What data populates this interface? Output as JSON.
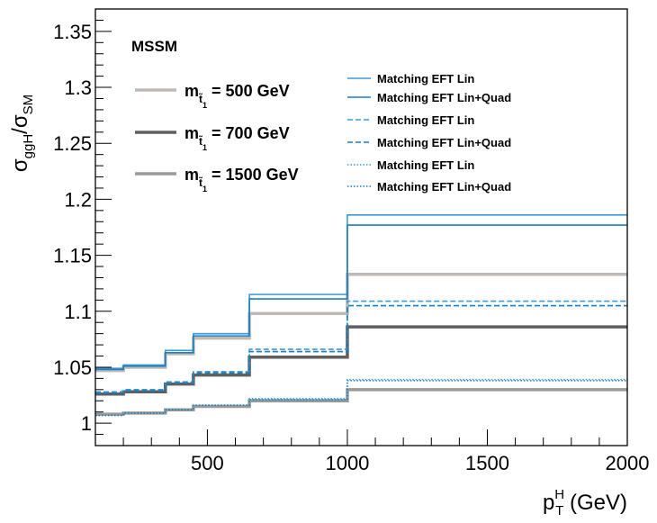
{
  "chart_data": {
    "type": "line",
    "step": true,
    "xlim": [
      100,
      2000
    ],
    "ylim": [
      0.98,
      1.37
    ],
    "x_ticks": [
      500,
      1000,
      1500,
      2000
    ],
    "x_tick_labels": [
      "500",
      "1000",
      "1500",
      "2000"
    ],
    "y_ticks": [
      1.0,
      1.05,
      1.1,
      1.15,
      1.2,
      1.25,
      1.3,
      1.35
    ],
    "y_tick_labels": [
      "1",
      "1.05",
      "1.1",
      "1.15",
      "1.2",
      "1.25",
      "1.3",
      "1.35"
    ],
    "xlabel": {
      "main": "p",
      "sup": "H",
      "sub": "T",
      "unit": " (GeV)"
    },
    "ylabel": {
      "num": "σ",
      "num_sub": "ggH",
      "slash": "/",
      "den": "σ",
      "den_sub": "SM"
    },
    "annotation": "MSSM",
    "bin_edges": [
      100,
      200,
      350,
      450,
      650,
      1000,
      2000
    ],
    "mass_legend": [
      {
        "prefix": "m",
        "sub": "t̃",
        "subsub": "1",
        "text": "=  500 GeV",
        "color": "#c0b8b4"
      },
      {
        "prefix": "m",
        "sub": "t̃",
        "subsub": "1",
        "text": "=  700 GeV",
        "color": "#5f5f5f"
      },
      {
        "prefix": "m",
        "sub": "t̃",
        "subsub": "1",
        "text": "= 1500 GeV",
        "color": "#9a9a9a"
      }
    ],
    "line_legend": [
      {
        "label": "Matching EFT Lin",
        "style": "solid",
        "color": "#3a9ad9"
      },
      {
        "label": "Matching EFT Lin+Quad",
        "style": "solid",
        "color": "#1a7fc0"
      },
      {
        "label": "Matching EFT Lin",
        "style": "dashed",
        "color": "#3a9ad9"
      },
      {
        "label": "Matching EFT Lin+Quad",
        "style": "dashed",
        "color": "#1a7fc0"
      },
      {
        "label": "Matching EFT Lin",
        "style": "dotted",
        "color": "#3a9ad9"
      },
      {
        "label": "Matching EFT Lin+Quad",
        "style": "dotted",
        "color": "#1a7fc0"
      }
    ],
    "series": [
      {
        "group": "500 GeV",
        "role": "main",
        "style": "solid",
        "width": 3.5,
        "color": "#c0b8b4",
        "values": [
          1.047,
          1.05,
          1.062,
          1.076,
          1.098,
          1.133
        ]
      },
      {
        "group": "500 GeV",
        "role": "EFT Lin",
        "style": "solid",
        "width": 1.6,
        "color": "#3a9ad9",
        "values": [
          1.049,
          1.052,
          1.065,
          1.08,
          1.115,
          1.186
        ]
      },
      {
        "group": "500 GeV",
        "role": "EFT Lin+Quad",
        "style": "solid",
        "width": 1.6,
        "color": "#1a7fc0",
        "values": [
          1.048,
          1.051,
          1.063,
          1.078,
          1.111,
          1.177
        ]
      },
      {
        "group": "700 GeV",
        "role": "main",
        "style": "solid",
        "width": 3.5,
        "color": "#5f5f5f",
        "values": [
          1.026,
          1.028,
          1.035,
          1.043,
          1.059,
          1.086
        ]
      },
      {
        "group": "700 GeV",
        "role": "EFT Lin",
        "style": "dashed",
        "width": 1.6,
        "color": "#3a9ad9",
        "values": [
          1.028,
          1.03,
          1.037,
          1.046,
          1.066,
          1.109
        ]
      },
      {
        "group": "700 GeV",
        "role": "EFT Lin+Quad",
        "style": "dashed",
        "width": 1.6,
        "color": "#1a7fc0",
        "values": [
          1.027,
          1.029,
          1.036,
          1.045,
          1.064,
          1.105
        ]
      },
      {
        "group": "1500 GeV",
        "role": "main",
        "style": "solid",
        "width": 3.5,
        "color": "#9a9a9a",
        "values": [
          1.008,
          1.009,
          1.012,
          1.015,
          1.02,
          1.03
        ]
      },
      {
        "group": "1500 GeV",
        "role": "EFT Lin",
        "style": "dotted",
        "width": 1.6,
        "color": "#3a9ad9",
        "values": [
          1.007,
          1.009,
          1.012,
          1.016,
          1.022,
          1.039
        ]
      },
      {
        "group": "1500 GeV",
        "role": "EFT Lin+Quad",
        "style": "dotted",
        "width": 1.6,
        "color": "#1a7fc0",
        "values": [
          1.007,
          1.009,
          1.012,
          1.016,
          1.021,
          1.038
        ]
      }
    ]
  }
}
